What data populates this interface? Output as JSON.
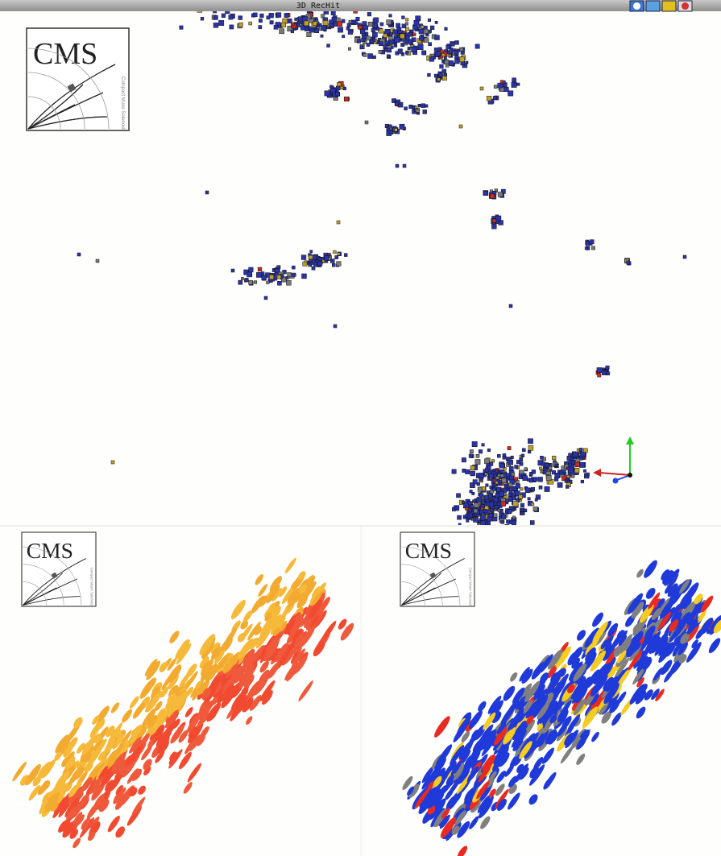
{
  "window": {
    "title": "3D RecHit"
  },
  "logos": [
    "CMS",
    "CMS",
    "CMS"
  ],
  "logo_caption": "Compact Muon Solenoid"
}
